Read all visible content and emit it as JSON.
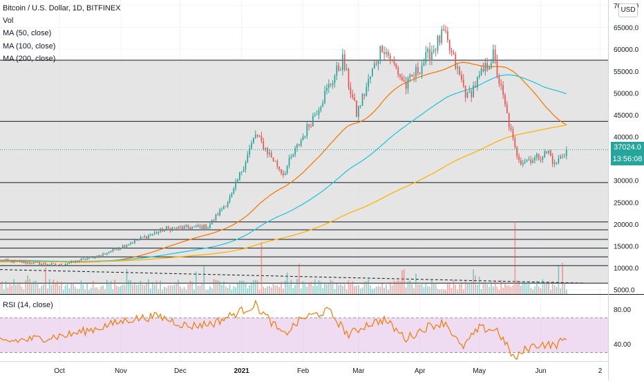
{
  "legend": {
    "title": "Bitcoin / U.S. Dollar, 1D, BITFINEX",
    "vol": "Vol",
    "ma50": "MA (50, close)",
    "ma100": "MA (100, close)",
    "ma200": "MA (200, close)"
  },
  "currency_button": "USD",
  "last_price": {
    "price": "37024.0",
    "countdown": "13:56:08"
  },
  "rsi_label": "RSI (14, close)",
  "colors": {
    "up": "#26a69a",
    "down": "#ef5350",
    "ma50": "#f57c00",
    "ma100": "#26c6da",
    "ma200": "#ffb300",
    "rsi": "#f57c00",
    "rsi_band": "#e1bee7",
    "zone": "#e0e0e0"
  },
  "chart_data": [
    {
      "type": "candlestick",
      "title": "Bitcoin / U.S. Dollar, 1D, BITFINEX",
      "ylim": [
        4000,
        70000
      ],
      "y_ticks": [
        "70000.0",
        "65000.0",
        "60000.0",
        "55000.0",
        "50000.0",
        "45000.0",
        "40000.0",
        "35000.0",
        "30000.0",
        "25000.0",
        "20000.0",
        "15000.0",
        "10000.0",
        "5000.0"
      ],
      "y_tick_values": [
        70000,
        65000,
        60000,
        55000,
        50000,
        45000,
        40000,
        35000,
        30000,
        25000,
        20000,
        15000,
        10000,
        5000
      ],
      "x_ticks": [
        "Oct",
        "Nov",
        "Dec",
        "2021",
        "Feb",
        "Mar",
        "Apr",
        "May",
        "Jun",
        "2"
      ],
      "x_tick_dates": [
        "2020-10-01",
        "2020-11-01",
        "2020-12-01",
        "2021-01-01",
        "2021-02-01",
        "2021-03-01",
        "2021-04-01",
        "2021-05-01",
        "2021-06-01",
        "2021-07-01"
      ],
      "x_range": [
        "2020-09-01",
        "2021-07-05"
      ],
      "last_date": "2021-06-14",
      "horizontal_levels": [
        57500,
        43500,
        29500,
        20500,
        18700,
        16500,
        14500,
        12500,
        10500,
        6500
      ],
      "shaded_zone": [
        6500,
        57500
      ],
      "close_anchors": [
        {
          "date": "2020-09-01",
          "close": 11700
        },
        {
          "date": "2020-10-01",
          "close": 10600
        },
        {
          "date": "2020-10-22",
          "close": 12900
        },
        {
          "date": "2020-11-05",
          "close": 15600
        },
        {
          "date": "2020-11-24",
          "close": 19000
        },
        {
          "date": "2020-12-15",
          "close": 19400
        },
        {
          "date": "2020-12-27",
          "close": 26500
        },
        {
          "date": "2021-01-08",
          "close": 40500
        },
        {
          "date": "2021-01-22",
          "close": 31500
        },
        {
          "date": "2021-02-08",
          "close": 46200
        },
        {
          "date": "2021-02-21",
          "close": 57500
        },
        {
          "date": "2021-02-28",
          "close": 45200
        },
        {
          "date": "2021-03-13",
          "close": 61000
        },
        {
          "date": "2021-03-25",
          "close": 51500
        },
        {
          "date": "2021-04-13",
          "close": 63500
        },
        {
          "date": "2021-04-25",
          "close": 49000
        },
        {
          "date": "2021-05-08",
          "close": 58500
        },
        {
          "date": "2021-05-19",
          "close": 37000
        },
        {
          "date": "2021-05-22",
          "close": 34500
        },
        {
          "date": "2021-05-29",
          "close": 35000
        },
        {
          "date": "2021-06-05",
          "close": 36500
        },
        {
          "date": "2021-06-08",
          "close": 33500
        },
        {
          "date": "2021-06-14",
          "close": 37024
        }
      ],
      "volume_scale_note": "volume bars in the lower band of the main pane",
      "ma_series": [
        {
          "name": "MA (50, close)",
          "period": 50
        },
        {
          "name": "MA (100, close)",
          "period": 100
        },
        {
          "name": "MA (200, close)",
          "period": 200
        }
      ]
    },
    {
      "type": "line",
      "title": "RSI (14, close)",
      "ylim": [
        20,
        95
      ],
      "y_ticks": [
        "80.00",
        "40.00"
      ],
      "y_tick_values": [
        80,
        40
      ],
      "band": [
        30,
        70
      ],
      "x": [
        "2020-09-01",
        "2020-09-20",
        "2020-10-05",
        "2020-10-20",
        "2020-11-05",
        "2020-11-20",
        "2020-12-05",
        "2020-12-18",
        "2020-12-30",
        "2021-01-08",
        "2021-01-22",
        "2021-02-01",
        "2021-02-14",
        "2021-02-24",
        "2021-03-05",
        "2021-03-14",
        "2021-03-25",
        "2021-04-05",
        "2021-04-14",
        "2021-04-22",
        "2021-05-01",
        "2021-05-10",
        "2021-05-19",
        "2021-05-25",
        "2021-06-01",
        "2021-06-08",
        "2021-06-14"
      ],
      "values": [
        42,
        46,
        50,
        58,
        68,
        72,
        60,
        64,
        76,
        85,
        50,
        70,
        78,
        50,
        62,
        68,
        46,
        60,
        65,
        35,
        58,
        56,
        22,
        35,
        40,
        38,
        46
      ]
    }
  ]
}
